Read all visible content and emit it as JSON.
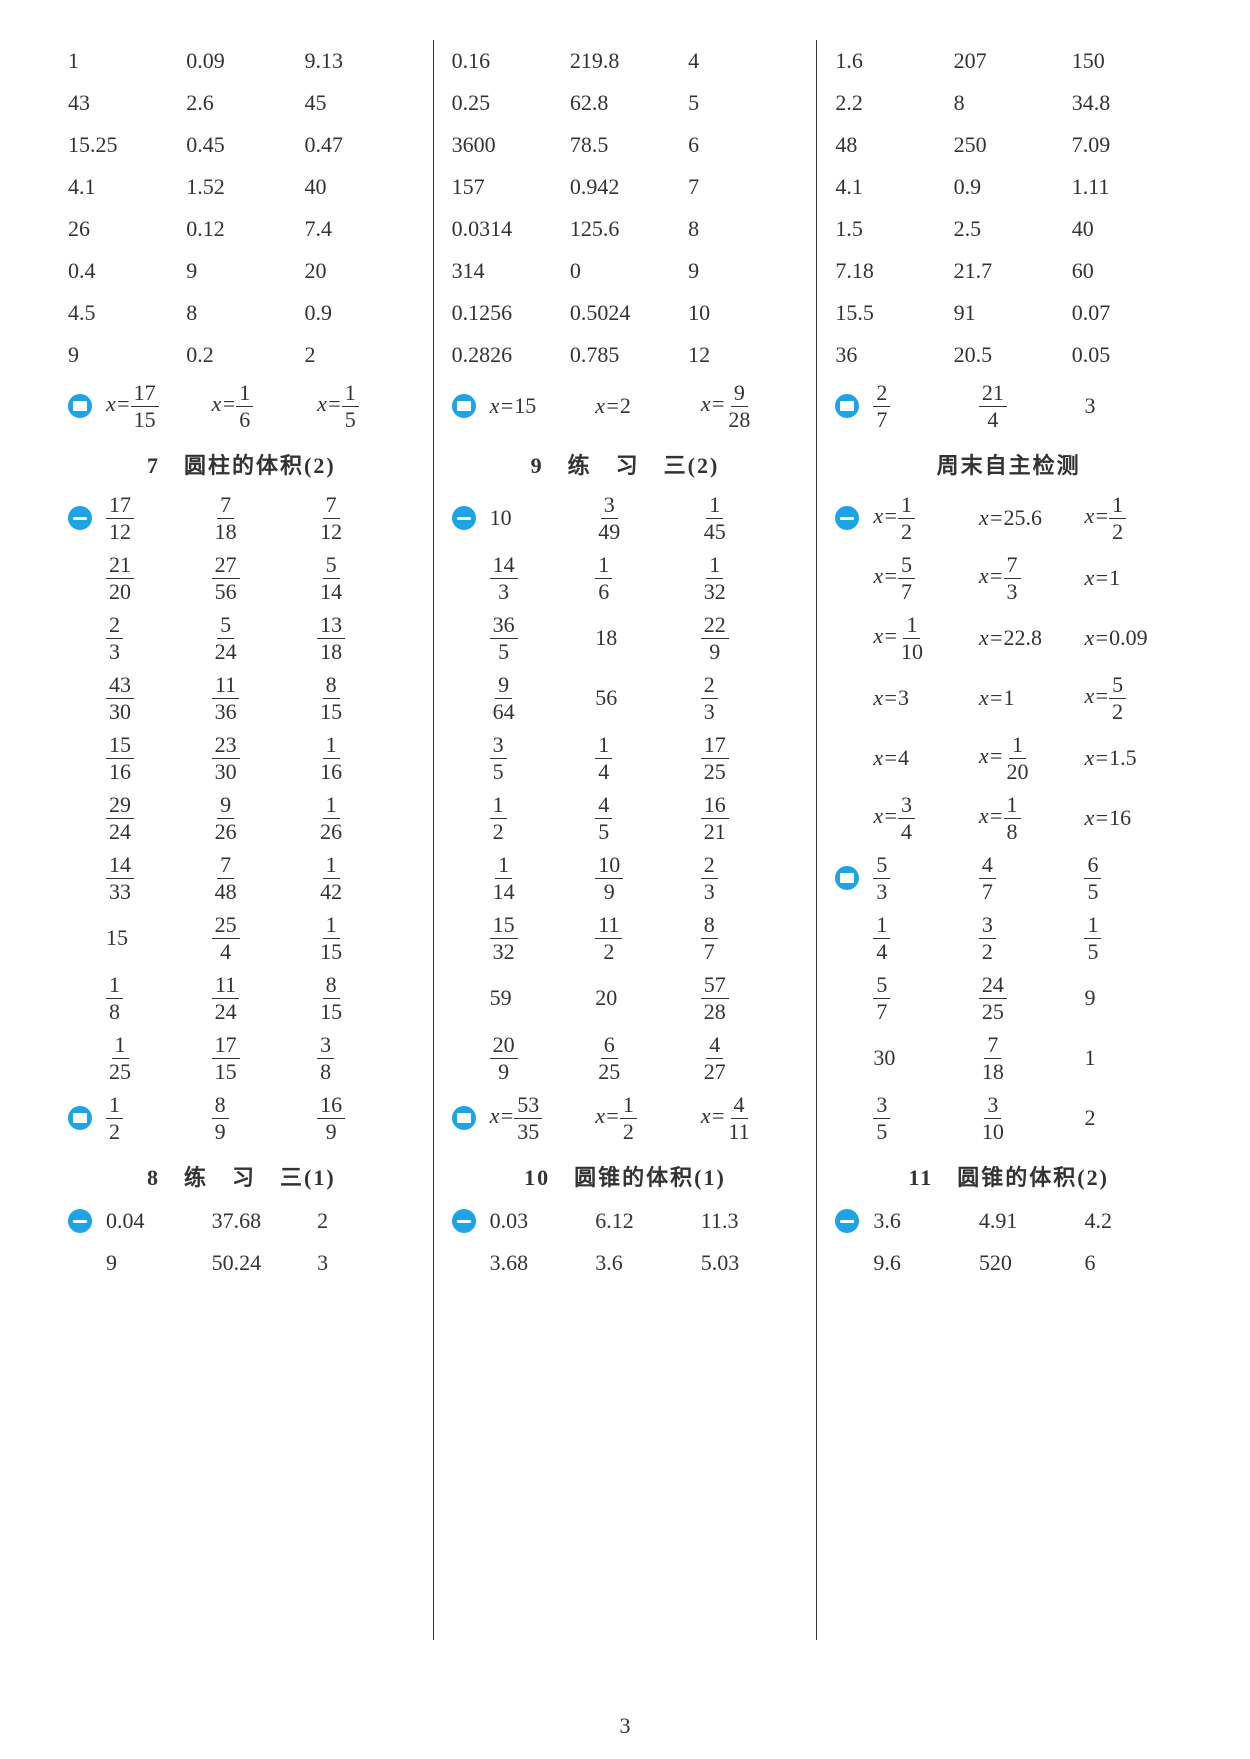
{
  "page_number": "3",
  "columns": [
    {
      "blocks": [
        {
          "type": "grid",
          "bullet": null,
          "rows": [
            [
              "1",
              "0.09",
              "9.13"
            ],
            [
              "43",
              "2.6",
              "45"
            ],
            [
              "15.25",
              "0.45",
              "0.47"
            ],
            [
              "4.1",
              "1.52",
              "40"
            ],
            [
              "26",
              "0.12",
              "7.4"
            ],
            [
              "0.4",
              "9",
              "20"
            ],
            [
              "4.5",
              "8",
              "0.9"
            ],
            [
              "9",
              "0.2",
              "2"
            ]
          ]
        },
        {
          "type": "eqrow",
          "bullet": "two",
          "cells": [
            {
              "pre": "x=",
              "num": "17",
              "den": "15"
            },
            {
              "pre": "x=",
              "num": "1",
              "den": "6"
            },
            {
              "pre": "x=",
              "num": "1",
              "den": "5"
            }
          ]
        },
        {
          "type": "title",
          "text": "7　圆柱的体积(2)"
        },
        {
          "type": "fracgrid",
          "bullet": "one",
          "rows": [
            [
              {
                "num": "17",
                "den": "12"
              },
              {
                "num": "7",
                "den": "18"
              },
              {
                "num": "7",
                "den": "12"
              }
            ],
            [
              {
                "num": "21",
                "den": "20"
              },
              {
                "num": "27",
                "den": "56"
              },
              {
                "num": "5",
                "den": "14"
              }
            ],
            [
              {
                "num": "2",
                "den": "3"
              },
              {
                "num": "5",
                "den": "24"
              },
              {
                "num": "13",
                "den": "18"
              }
            ],
            [
              {
                "num": "43",
                "den": "30"
              },
              {
                "num": "11",
                "den": "36"
              },
              {
                "num": "8",
                "den": "15"
              }
            ],
            [
              {
                "num": "15",
                "den": "16"
              },
              {
                "num": "23",
                "den": "30"
              },
              {
                "num": "1",
                "den": "16"
              }
            ],
            [
              {
                "num": "29",
                "den": "24"
              },
              {
                "num": "9",
                "den": "26"
              },
              {
                "num": "1",
                "den": "26"
              }
            ],
            [
              {
                "num": "14",
                "den": "33"
              },
              {
                "num": "7",
                "den": "48"
              },
              {
                "num": "1",
                "den": "42"
              }
            ],
            [
              {
                "text": "15"
              },
              {
                "num": "25",
                "den": "4"
              },
              {
                "num": "1",
                "den": "15"
              }
            ],
            [
              {
                "num": "1",
                "den": "8"
              },
              {
                "num": "11",
                "den": "24"
              },
              {
                "num": "8",
                "den": "15"
              }
            ],
            [
              {
                "num": "1",
                "den": "25"
              },
              {
                "num": "17",
                "den": "15"
              },
              {
                "num": "3",
                "den": "8"
              }
            ]
          ]
        },
        {
          "type": "eqrow",
          "bullet": "two",
          "cells": [
            {
              "num": "1",
              "den": "2"
            },
            {
              "num": "8",
              "den": "9"
            },
            {
              "num": "16",
              "den": "9"
            }
          ]
        },
        {
          "type": "title",
          "text": "8　练　习　三(1)"
        },
        {
          "type": "grid",
          "bullet": "one",
          "rows": [
            [
              "0.04",
              "37.68",
              "2"
            ],
            [
              "9",
              "50.24",
              "3"
            ]
          ]
        }
      ]
    },
    {
      "blocks": [
        {
          "type": "grid",
          "bullet": null,
          "rows": [
            [
              "0.16",
              "219.8",
              "4"
            ],
            [
              "0.25",
              "62.8",
              "5"
            ],
            [
              "3600",
              "78.5",
              "6"
            ],
            [
              "157",
              "0.942",
              "7"
            ],
            [
              "0.0314",
              "125.6",
              "8"
            ],
            [
              "314",
              "0",
              "9"
            ],
            [
              "0.1256",
              "0.5024",
              "10"
            ],
            [
              "0.2826",
              "0.785",
              "12"
            ]
          ]
        },
        {
          "type": "eqrow",
          "bullet": "two",
          "cells": [
            {
              "pre": "x=",
              "text": "15"
            },
            {
              "pre": "x=",
              "text": "2"
            },
            {
              "pre": "x=",
              "num": "9",
              "den": "28"
            }
          ]
        },
        {
          "type": "title",
          "text": "9　练　习　三(2)"
        },
        {
          "type": "fracgrid",
          "bullet": "one",
          "rows": [
            [
              {
                "text": "10"
              },
              {
                "num": "3",
                "den": "49"
              },
              {
                "num": "1",
                "den": "45"
              }
            ],
            [
              {
                "num": "14",
                "den": "3"
              },
              {
                "num": "1",
                "den": "6"
              },
              {
                "num": "1",
                "den": "32"
              }
            ],
            [
              {
                "num": "36",
                "den": "5"
              },
              {
                "text": "18"
              },
              {
                "num": "22",
                "den": "9"
              }
            ],
            [
              {
                "num": "9",
                "den": "64"
              },
              {
                "text": "56"
              },
              {
                "num": "2",
                "den": "3"
              }
            ],
            [
              {
                "num": "3",
                "den": "5"
              },
              {
                "num": "1",
                "den": "4"
              },
              {
                "num": "17",
                "den": "25"
              }
            ],
            [
              {
                "num": "1",
                "den": "2"
              },
              {
                "num": "4",
                "den": "5"
              },
              {
                "num": "16",
                "den": "21"
              }
            ],
            [
              {
                "num": "1",
                "den": "14"
              },
              {
                "num": "10",
                "den": "9"
              },
              {
                "num": "2",
                "den": "3"
              }
            ],
            [
              {
                "num": "15",
                "den": "32"
              },
              {
                "num": "11",
                "den": "2"
              },
              {
                "num": "8",
                "den": "7"
              }
            ],
            [
              {
                "text": "59"
              },
              {
                "text": "20"
              },
              {
                "num": "57",
                "den": "28"
              }
            ],
            [
              {
                "num": "20",
                "den": "9"
              },
              {
                "num": "6",
                "den": "25"
              },
              {
                "num": "4",
                "den": "27"
              }
            ]
          ]
        },
        {
          "type": "eqrow",
          "bullet": "two",
          "cells": [
            {
              "pre": "x=",
              "num": "53",
              "den": "35"
            },
            {
              "pre": "x=",
              "num": "1",
              "den": "2"
            },
            {
              "pre": "x=",
              "num": "4",
              "den": "11"
            }
          ]
        },
        {
          "type": "title",
          "text": "10　圆锥的体积(1)"
        },
        {
          "type": "grid",
          "bullet": "one",
          "rows": [
            [
              "0.03",
              "6.12",
              "11.3"
            ],
            [
              "3.68",
              "3.6",
              "5.03"
            ]
          ]
        }
      ]
    },
    {
      "blocks": [
        {
          "type": "grid",
          "bullet": null,
          "rows": [
            [
              "1.6",
              "207",
              "150"
            ],
            [
              "2.2",
              "8",
              "34.8"
            ],
            [
              "48",
              "250",
              "7.09"
            ],
            [
              "4.1",
              "0.9",
              "1.11"
            ],
            [
              "1.5",
              "2.5",
              "40"
            ],
            [
              "7.18",
              "21.7",
              "60"
            ],
            [
              "15.5",
              "91",
              "0.07"
            ],
            [
              "36",
              "20.5",
              "0.05"
            ]
          ]
        },
        {
          "type": "eqrow",
          "bullet": "two",
          "cells": [
            {
              "num": "2",
              "den": "7"
            },
            {
              "num": "21",
              "den": "4"
            },
            {
              "text": "3"
            }
          ]
        },
        {
          "type": "title",
          "text": "周末自主检测"
        },
        {
          "type": "eqgrid",
          "bullet": "one",
          "rows": [
            [
              {
                "pre": "x=",
                "num": "1",
                "den": "2"
              },
              {
                "pre": "x=",
                "text": "25.6"
              },
              {
                "pre": "x=",
                "num": "1",
                "den": "2"
              }
            ],
            [
              {
                "pre": "x=",
                "num": "5",
                "den": "7"
              },
              {
                "pre": "x=",
                "num": "7",
                "den": "3"
              },
              {
                "pre": "x=",
                "text": "1"
              }
            ],
            [
              {
                "pre": "x=",
                "num": "1",
                "den": "10"
              },
              {
                "pre": "x=",
                "text": "22.8"
              },
              {
                "pre": "x=",
                "text": "0.09"
              }
            ],
            [
              {
                "pre": "x=",
                "text": "3"
              },
              {
                "pre": "x=",
                "text": "1"
              },
              {
                "pre": "x=",
                "num": "5",
                "den": "2"
              }
            ],
            [
              {
                "pre": "x=",
                "text": "4"
              },
              {
                "pre": "x=",
                "num": "1",
                "den": "20"
              },
              {
                "pre": "x=",
                "text": "1.5"
              }
            ],
            [
              {
                "pre": "x=",
                "num": "3",
                "den": "4"
              },
              {
                "pre": "x=",
                "num": "1",
                "den": "8"
              },
              {
                "pre": "x=",
                "text": "16"
              }
            ]
          ]
        },
        {
          "type": "fracgrid",
          "bullet": "two",
          "rows": [
            [
              {
                "num": "5",
                "den": "3"
              },
              {
                "num": "4",
                "den": "7"
              },
              {
                "num": "6",
                "den": "5"
              }
            ],
            [
              {
                "num": "1",
                "den": "4"
              },
              {
                "num": "3",
                "den": "2"
              },
              {
                "num": "1",
                "den": "5"
              }
            ],
            [
              {
                "num": "5",
                "den": "7"
              },
              {
                "num": "24",
                "den": "25"
              },
              {
                "text": "9"
              }
            ],
            [
              {
                "text": "30"
              },
              {
                "num": "7",
                "den": "18"
              },
              {
                "text": "1"
              }
            ],
            [
              {
                "num": "3",
                "den": "5"
              },
              {
                "num": "3",
                "den": "10"
              },
              {
                "text": "2"
              }
            ]
          ]
        },
        {
          "type": "title",
          "text": "11　圆锥的体积(2)"
        },
        {
          "type": "grid",
          "bullet": "one",
          "rows": [
            [
              "3.6",
              "4.91",
              "4.2"
            ],
            [
              "9.6",
              "520",
              "6"
            ]
          ]
        }
      ]
    }
  ]
}
